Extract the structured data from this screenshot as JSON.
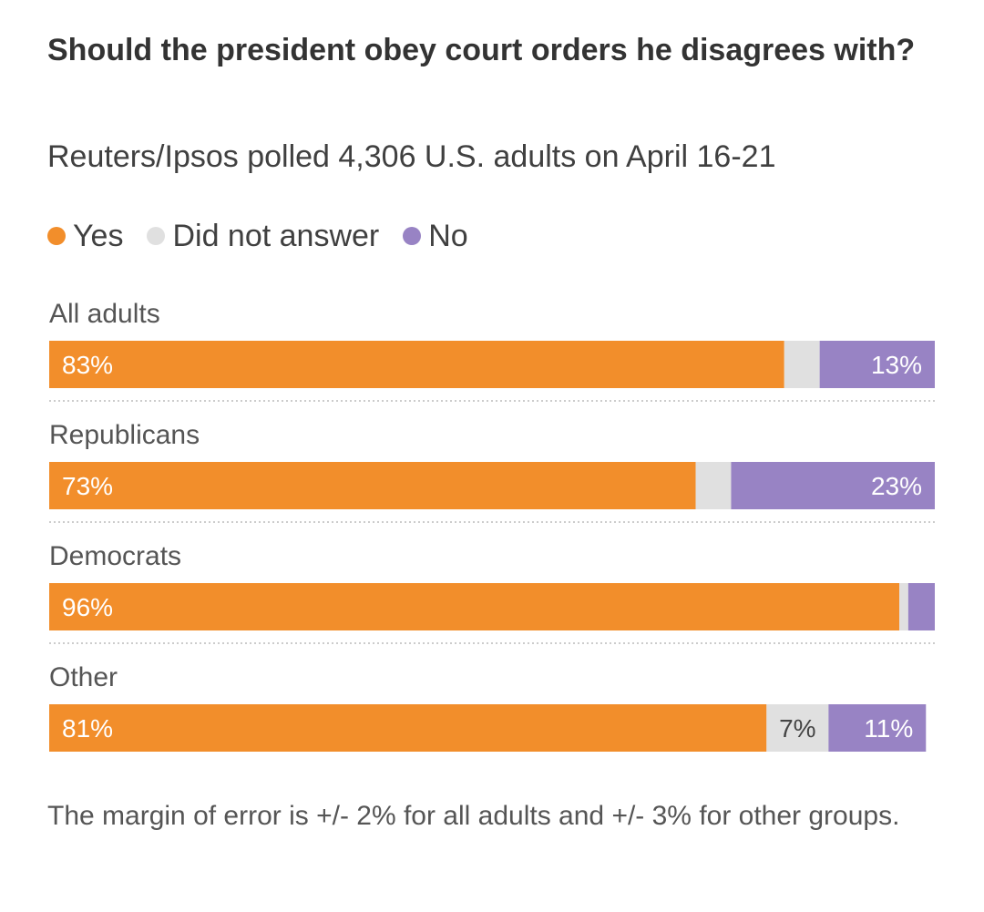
{
  "title": "Should the president obey court orders he disagrees with?",
  "subtitle": "Reuters/Ipsos polled 4,306 U.S. adults on April 16-21",
  "legend": [
    {
      "label": "Yes",
      "color": "#f28e2b"
    },
    {
      "label": "Did not answer",
      "color": "#e0e0e0"
    },
    {
      "label": "No",
      "color": "#9883c4"
    }
  ],
  "footnote": "The margin of error is +/- 2% for all adults and +/- 3% for other groups.",
  "chart_data": {
    "type": "bar",
    "orientation": "horizontal-stacked-100",
    "categories": [
      "All adults",
      "Republicans",
      "Democrats",
      "Other"
    ],
    "series": [
      {
        "name": "Yes",
        "values": [
          83,
          73,
          96,
          81
        ],
        "labels": [
          "83%",
          "73%",
          "96%",
          "81%"
        ]
      },
      {
        "name": "Did not answer",
        "values": [
          4,
          4,
          1,
          7
        ],
        "labels": [
          "",
          "",
          "",
          "7%"
        ]
      },
      {
        "name": "No",
        "values": [
          13,
          23,
          3,
          11
        ],
        "labels": [
          "13%",
          "23%",
          "",
          "11%"
        ]
      }
    ],
    "xlim": [
      0,
      100
    ],
    "grid": false,
    "legend_position": "top-left"
  }
}
